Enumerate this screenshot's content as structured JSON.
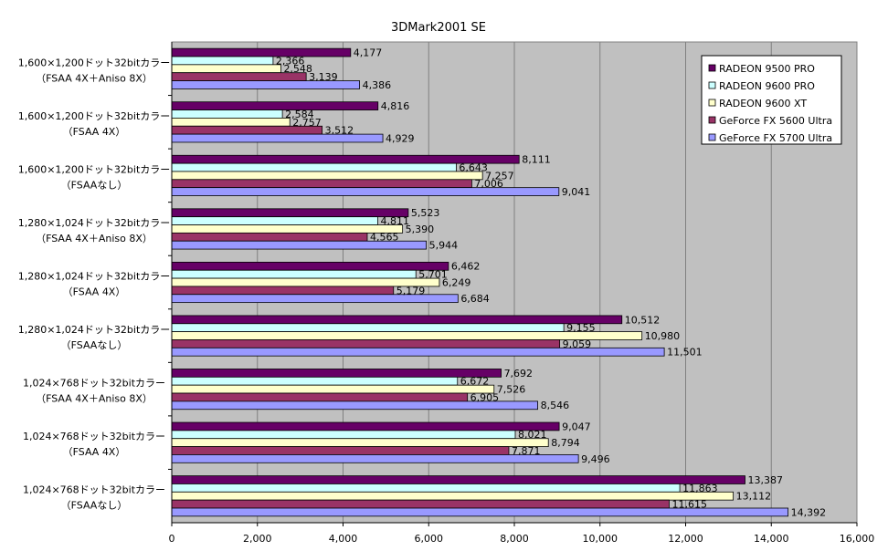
{
  "chart_data": {
    "type": "bar",
    "orientation": "horizontal",
    "title": "3DMark2001 SE",
    "xlabel": "",
    "ylabel": "",
    "xlim": [
      0,
      16000
    ],
    "xticks": [
      "0",
      "2,000",
      "4,000",
      "6,000",
      "8,000",
      "10,000",
      "12,000",
      "14,000",
      "16,000"
    ],
    "grid": true,
    "legend_position": "top-right",
    "categories": [
      [
        "1,600×1,200ドット32bitカラー",
        "（FSAA 4X＋Aniso 8X）"
      ],
      [
        "1,600×1,200ドット32bitカラー",
        "（FSAA 4X）"
      ],
      [
        "1,600×1,200ドット32bitカラー",
        "（FSAAなし）"
      ],
      [
        "1,280×1,024ドット32bitカラー",
        "（FSAA 4X＋Aniso 8X）"
      ],
      [
        "1,280×1,024ドット32bitカラー",
        "（FSAA 4X）"
      ],
      [
        "1,280×1,024ドット32bitカラー",
        "（FSAAなし）"
      ],
      [
        "1,024×768ドット32bitカラー",
        "（FSAA 4X＋Aniso 8X）"
      ],
      [
        "1,024×768ドット32bitカラー",
        "（FSAA 4X）"
      ],
      [
        "1,024×768ドット32bitカラー",
        "（FSAAなし）"
      ]
    ],
    "series": [
      {
        "name": "RADEON 9500 PRO",
        "color": "#660066",
        "values": [
          4177,
          4816,
          8111,
          5523,
          6462,
          10512,
          7692,
          9047,
          13387
        ]
      },
      {
        "name": "RADEON 9600 PRO",
        "color": "#ccffff",
        "values": [
          2366,
          2584,
          6643,
          4811,
          5701,
          9155,
          6672,
          8021,
          11863
        ]
      },
      {
        "name": "RADEON 9600 XT",
        "color": "#ffffcc",
        "values": [
          2548,
          2757,
          7257,
          5390,
          6249,
          10980,
          7526,
          8794,
          13112
        ]
      },
      {
        "name": "GeForce FX 5600 Ultra",
        "color": "#993366",
        "values": [
          3139,
          3512,
          7006,
          4565,
          5179,
          9059,
          6905,
          7871,
          11615
        ]
      },
      {
        "name": "GeForce FX 5700 Ultra",
        "color": "#9999ff",
        "values": [
          4386,
          4929,
          9041,
          5944,
          6684,
          11501,
          8546,
          9496,
          14392
        ]
      }
    ]
  }
}
